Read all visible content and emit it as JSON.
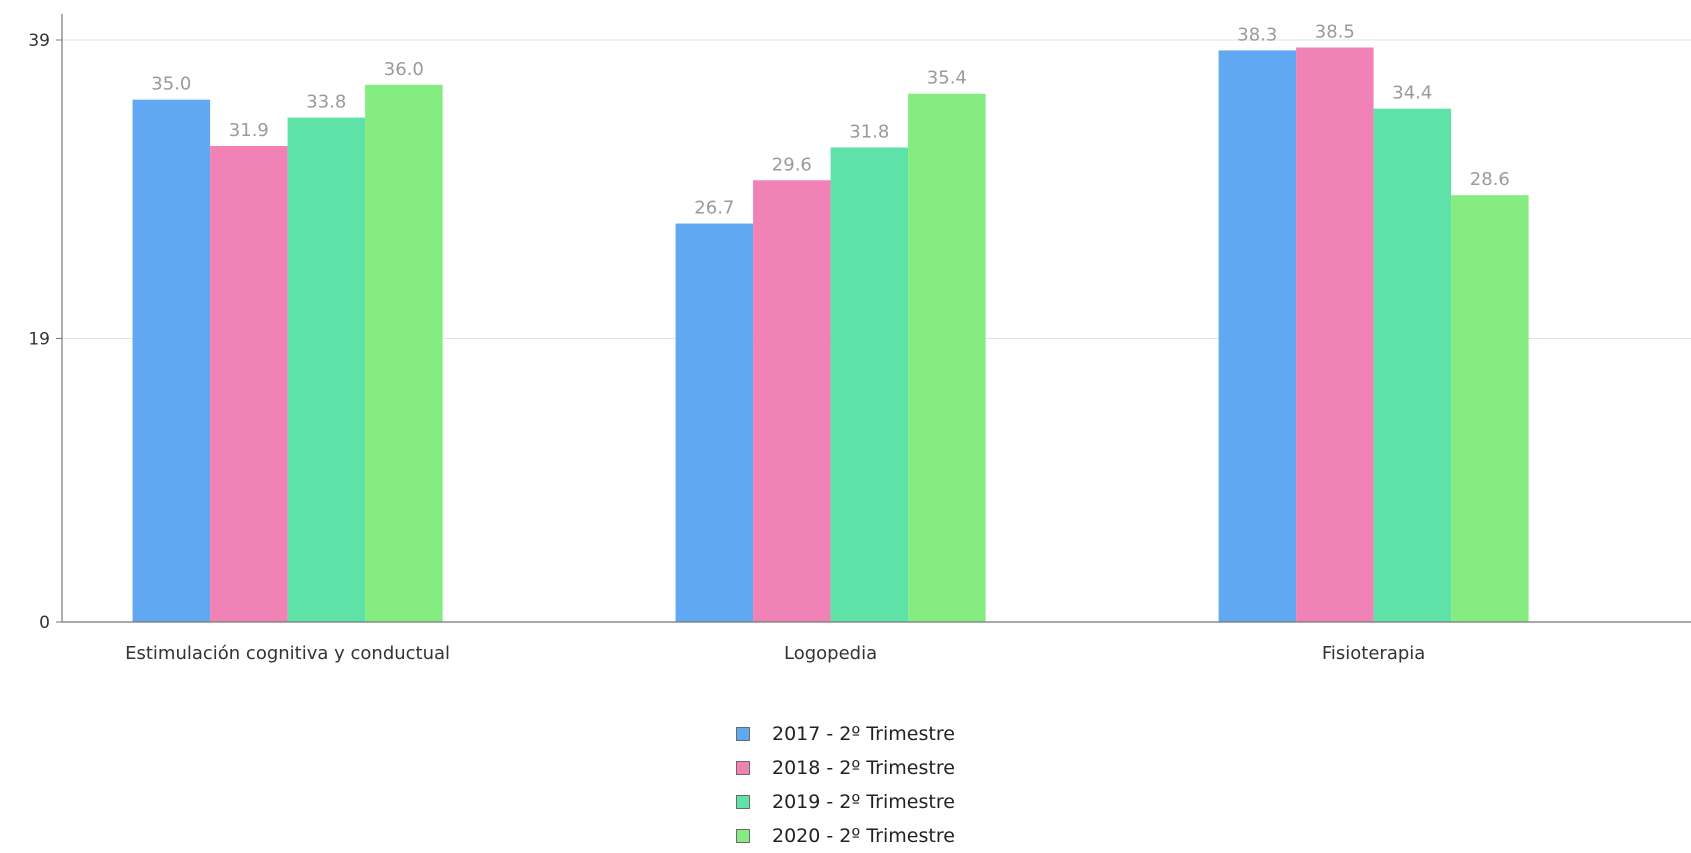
{
  "chart_data": {
    "type": "bar",
    "categories": [
      "Estimulación cognitiva y conductual",
      "Logopedia",
      "Fisioterapia"
    ],
    "series": [
      {
        "name": "2017 - 2º Trimestre",
        "values": [
          35.0,
          26.7,
          38.3
        ],
        "color": "#60a8f2"
      },
      {
        "name": "2018 - 2º Trimestre",
        "values": [
          31.9,
          29.6,
          38.5
        ],
        "color": "#f082b6"
      },
      {
        "name": "2019 - 2º Trimestre",
        "values": [
          33.8,
          31.8,
          34.4
        ],
        "color": "#5fe2a8"
      },
      {
        "name": "2020 - 2º Trimestre",
        "values": [
          36.0,
          35.4,
          28.6
        ],
        "color": "#84ec80"
      }
    ],
    "yticks": [
      0,
      19,
      39
    ],
    "ylim": [
      0,
      39
    ],
    "grid": true,
    "legend_position": "bottom-center",
    "data_labels": true
  }
}
